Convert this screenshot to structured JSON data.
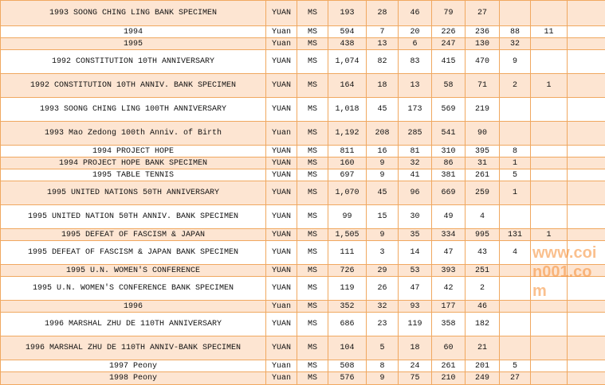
{
  "rows": [
    {
      "name": "1993 SOONG CHING LING BANK SPECIMEN",
      "unit": "YUAN",
      "grade": "MS",
      "total": "193",
      "c": [
        "28",
        "46",
        "79",
        "27",
        "",
        "",
        ""
      ],
      "h": 32
    },
    {
      "name": "1994",
      "unit": "Yuan",
      "grade": "MS",
      "total": "594",
      "c": [
        "7",
        "20",
        "226",
        "236",
        "88",
        "11",
        ""
      ],
      "h": 15
    },
    {
      "name": "1995",
      "unit": "Yuan",
      "grade": "MS",
      "total": "438",
      "c": [
        "13",
        "6",
        "247",
        "130",
        "32",
        "",
        ""
      ],
      "h": 15
    },
    {
      "name": "1992 CONSTITUTION 10TH ANNIVERSARY",
      "unit": "YUAN",
      "grade": "MS",
      "total": "1,074",
      "c": [
        "82",
        "83",
        "415",
        "470",
        "9",
        "",
        ""
      ],
      "h": 30
    },
    {
      "name": "1992 CONSTITUTION 10TH ANNIV. BANK SPECIMEN",
      "unit": "YUAN",
      "grade": "MS",
      "total": "164",
      "c": [
        "18",
        "13",
        "58",
        "71",
        "2",
        "1",
        ""
      ],
      "h": 30
    },
    {
      "name": "1993 SOONG CHING LING 100TH ANNIVERSARY",
      "unit": "YUAN",
      "grade": "MS",
      "total": "1,018",
      "c": [
        "45",
        "173",
        "569",
        "219",
        "",
        "",
        ""
      ],
      "h": 30
    },
    {
      "name": "1993 Mao Zedong 100th Anniv. of Birth",
      "unit": "Yuan",
      "grade": "MS",
      "total": "1,192",
      "c": [
        "208",
        "285",
        "541",
        "90",
        "",
        "",
        ""
      ],
      "h": 30
    },
    {
      "name": "1994 PROJECT HOPE",
      "unit": "YUAN",
      "grade": "MS",
      "total": "811",
      "c": [
        "16",
        "81",
        "310",
        "395",
        "8",
        "",
        ""
      ],
      "h": 15
    },
    {
      "name": "1994 PROJECT HOPE BANK SPECIMEN",
      "unit": "YUAN",
      "grade": "MS",
      "total": "160",
      "c": [
        "9",
        "32",
        "86",
        "31",
        "1",
        "",
        ""
      ],
      "h": 15
    },
    {
      "name": "1995 TABLE TENNIS",
      "unit": "YUAN",
      "grade": "MS",
      "total": "697",
      "c": [
        "9",
        "41",
        "381",
        "261",
        "5",
        "",
        ""
      ],
      "h": 15
    },
    {
      "name": "1995 UNITED NATIONS 50TH ANNIVERSARY",
      "unit": "YUAN",
      "grade": "MS",
      "total": "1,070",
      "c": [
        "45",
        "96",
        "669",
        "259",
        "1",
        "",
        ""
      ],
      "h": 30
    },
    {
      "name": "1995 UNITED NATION 50TH ANNIV. BANK SPECIMEN",
      "unit": "YUAN",
      "grade": "MS",
      "total": "99",
      "c": [
        "15",
        "30",
        "49",
        "4",
        "",
        "",
        ""
      ],
      "h": 30
    },
    {
      "name": "1995 DEFEAT OF FASCISM & JAPAN",
      "unit": "YUAN",
      "grade": "MS",
      "total": "1,505",
      "c": [
        "9",
        "35",
        "334",
        "995",
        "131",
        "1",
        ""
      ],
      "h": 15
    },
    {
      "name": "1995 DEFEAT OF FASCISM & JAPAN BANK SPECIMEN",
      "unit": "YUAN",
      "grade": "MS",
      "total": "111",
      "c": [
        "3",
        "14",
        "47",
        "43",
        "4",
        "",
        ""
      ],
      "h": 30
    },
    {
      "name": "1995 U.N. WOMEN'S CONFERENCE",
      "unit": "YUAN",
      "grade": "MS",
      "total": "726",
      "c": [
        "29",
        "53",
        "393",
        "251",
        "",
        "",
        ""
      ],
      "h": 15
    },
    {
      "name": "1995 U.N. WOMEN'S CONFERENCE BANK SPECIMEN",
      "unit": "YUAN",
      "grade": "MS",
      "total": "119",
      "c": [
        "26",
        "47",
        "42",
        "2",
        "",
        "",
        ""
      ],
      "h": 30
    },
    {
      "name": "1996",
      "unit": "Yuan",
      "grade": "MS",
      "total": "352",
      "c": [
        "32",
        "93",
        "177",
        "46",
        "",
        "",
        ""
      ],
      "h": 15
    },
    {
      "name": "1996 MARSHAL ZHU DE 110TH ANNIVERSARY",
      "unit": "YUAN",
      "grade": "MS",
      "total": "686",
      "c": [
        "23",
        "119",
        "358",
        "182",
        "",
        "",
        ""
      ],
      "h": 30
    },
    {
      "name": "1996 MARSHAL ZHU DE 110TH ANNIV-BANK SPECIMEN",
      "unit": "YUAN",
      "grade": "MS",
      "total": "104",
      "c": [
        "5",
        "18",
        "60",
        "21",
        "",
        "",
        ""
      ],
      "h": 30
    },
    {
      "name": "1997 Peony",
      "unit": "Yuan",
      "grade": "MS",
      "total": "508",
      "c": [
        "8",
        "24",
        "261",
        "201",
        "5",
        "",
        ""
      ],
      "h": 15
    },
    {
      "name": "1998 Peony",
      "unit": "Yuan",
      "grade": "MS",
      "total": "576",
      "c": [
        "9",
        "75",
        "210",
        "249",
        "27",
        "",
        ""
      ],
      "h": 16
    }
  ],
  "watermark": "www.coin001.com",
  "colors": {
    "peach": "#fde5d2",
    "border": "#f0a860",
    "watermark": "#f58c32"
  }
}
